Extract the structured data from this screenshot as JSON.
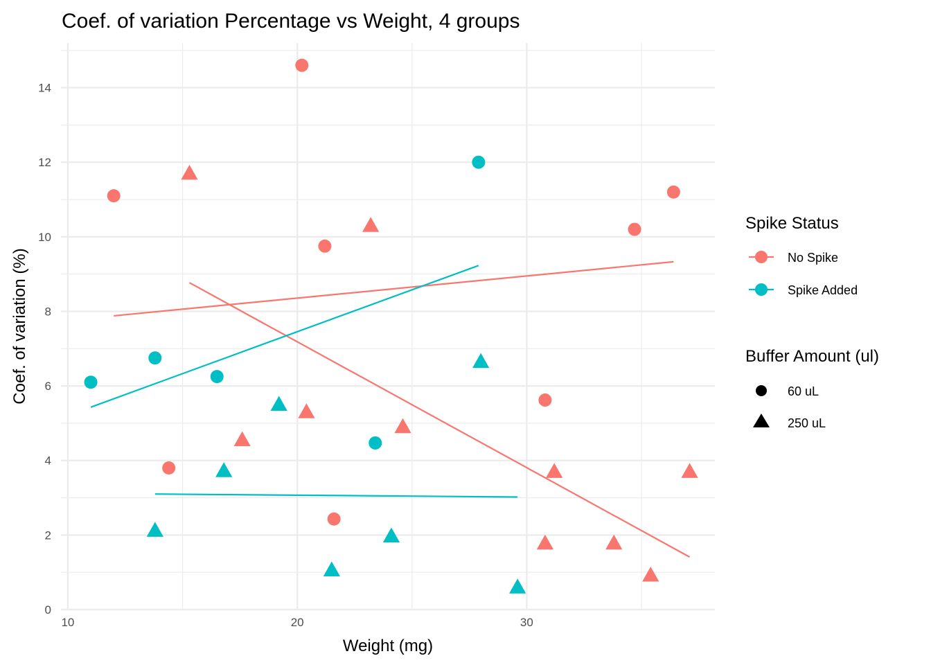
{
  "chart_data": {
    "type": "scatter",
    "title": "Coef. of variation Percentage vs Weight, 4 groups",
    "xlabel": "Weight (mg)",
    "ylabel": "Coef. of variation (%)",
    "xlim": [
      9.7,
      38.2
    ],
    "ylim": [
      0,
      15.2
    ],
    "x_ticks": [
      10,
      20,
      30
    ],
    "x_tick_labels": [
      "10",
      "20",
      "30"
    ],
    "x_minor_ticks": [
      15,
      25,
      35
    ],
    "y_ticks": [
      0,
      2,
      4,
      6,
      8,
      10,
      12,
      14
    ],
    "y_tick_labels": [
      "0",
      "2",
      "4",
      "6",
      "8",
      "10",
      "12",
      "14"
    ],
    "y_minor_ticks": [
      1,
      3,
      5,
      7,
      9,
      11,
      13,
      15
    ],
    "grid": true,
    "legend_position": "right",
    "legends": [
      {
        "title": "Spike Status",
        "type": "color",
        "entries": [
          {
            "label": "No Spike",
            "color": "#F8766D"
          },
          {
            "label": "Spike Added",
            "color": "#00BFC4"
          }
        ]
      },
      {
        "title": "Buffer Amount (ul)",
        "type": "shape",
        "entries": [
          {
            "label": "60 uL",
            "shape": "circle"
          },
          {
            "label": "250 uL",
            "shape": "triangle"
          }
        ]
      }
    ],
    "series": [
      {
        "name": "No Spike, 60 uL",
        "spike_status": "No Spike",
        "buffer": "60 uL",
        "color": "#F8766D",
        "shape": "circle",
        "points": [
          [
            12.0,
            11.1
          ],
          [
            20.2,
            14.6
          ],
          [
            21.2,
            9.75
          ],
          [
            14.4,
            3.8
          ],
          [
            21.6,
            2.43
          ],
          [
            30.8,
            5.62
          ],
          [
            34.7,
            10.2
          ],
          [
            36.4,
            11.2
          ]
        ],
        "fit": [
          [
            12.0,
            7.88
          ],
          [
            36.4,
            9.33
          ]
        ]
      },
      {
        "name": "No Spike, 250 uL",
        "spike_status": "No Spike",
        "buffer": "250 uL",
        "color": "#F8766D",
        "shape": "triangle",
        "points": [
          [
            15.3,
            11.7
          ],
          [
            23.2,
            10.3
          ],
          [
            17.6,
            4.55
          ],
          [
            20.4,
            5.3
          ],
          [
            24.6,
            4.9
          ],
          [
            31.2,
            3.7
          ],
          [
            30.8,
            1.78
          ],
          [
            33.8,
            1.78
          ],
          [
            35.4,
            0.92
          ],
          [
            37.1,
            3.7
          ]
        ],
        "fit": [
          [
            15.3,
            8.77
          ],
          [
            37.1,
            1.41
          ]
        ]
      },
      {
        "name": "Spike Added, 60 uL",
        "spike_status": "Spike Added",
        "buffer": "60 uL",
        "color": "#00BFC4",
        "shape": "circle",
        "points": [
          [
            11.0,
            6.1
          ],
          [
            13.8,
            6.75
          ],
          [
            16.5,
            6.25
          ],
          [
            23.4,
            4.47
          ],
          [
            27.9,
            12.0
          ]
        ],
        "fit": [
          [
            11.0,
            5.43
          ],
          [
            27.9,
            9.23
          ]
        ]
      },
      {
        "name": "Spike Added, 250 uL",
        "spike_status": "Spike Added",
        "buffer": "250 uL",
        "color": "#00BFC4",
        "shape": "triangle",
        "points": [
          [
            13.8,
            2.12
          ],
          [
            16.8,
            3.72
          ],
          [
            19.2,
            5.5
          ],
          [
            21.5,
            1.06
          ],
          [
            24.1,
            1.97
          ],
          [
            28.0,
            6.65
          ],
          [
            29.6,
            0.6
          ]
        ],
        "fit": [
          [
            13.8,
            3.1
          ],
          [
            29.6,
            3.02
          ]
        ]
      }
    ]
  }
}
